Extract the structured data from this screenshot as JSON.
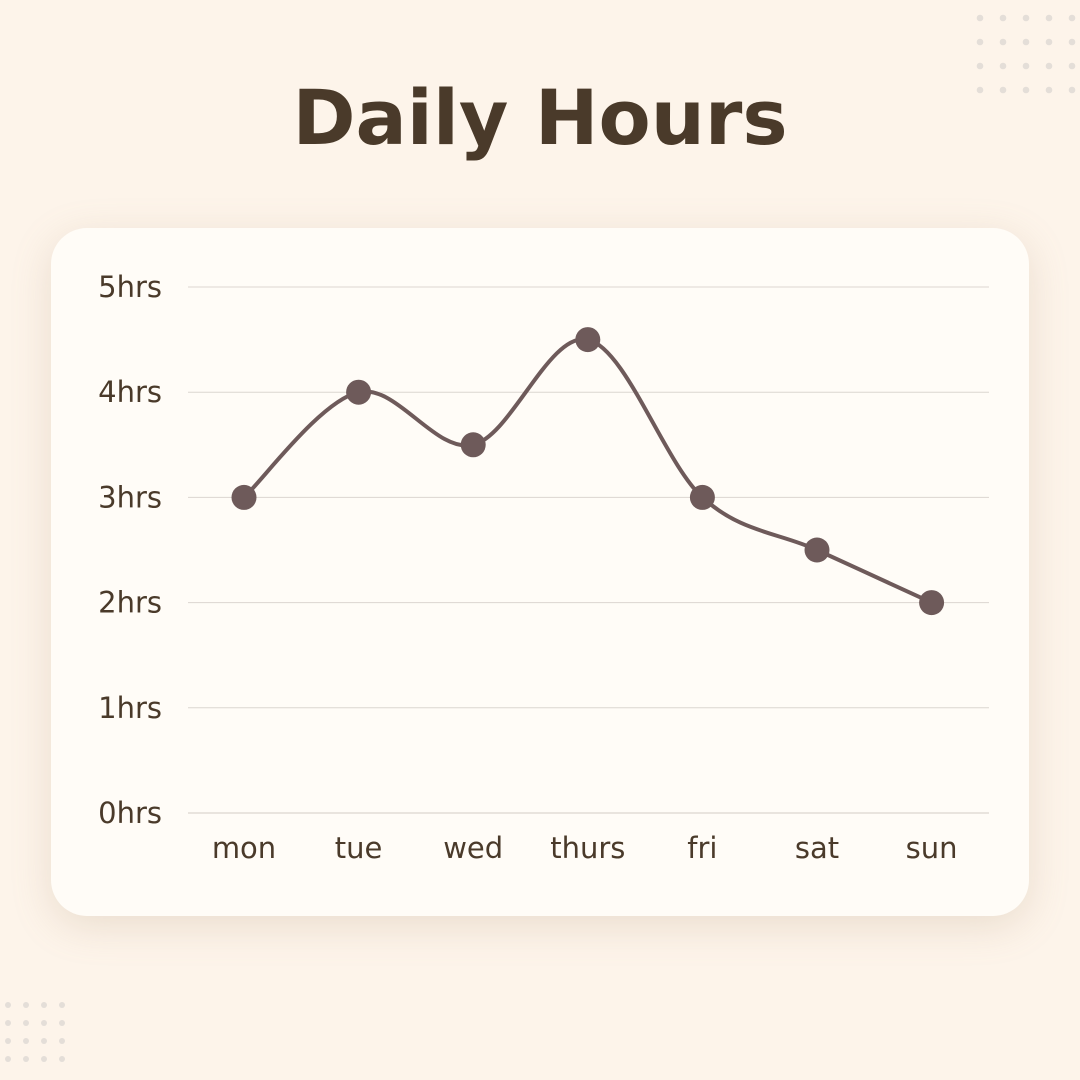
{
  "title": "Daily Hours",
  "chart_data": {
    "type": "line",
    "title": "Daily Hours",
    "xlabel": "",
    "ylabel": "",
    "categories": [
      "mon",
      "tue",
      "wed",
      "thurs",
      "fri",
      "sat",
      "sun"
    ],
    "series": [
      {
        "values": [
          3,
          4,
          3.5,
          4.5,
          3,
          2.5,
          2
        ]
      }
    ],
    "y_ticks": [
      "0hrs",
      "1hrs",
      "2hrs",
      "3hrs",
      "4hrs",
      "5hrs"
    ],
    "ylim": [
      0,
      5
    ],
    "grid": true,
    "smooth": true,
    "legend": "none"
  },
  "colors": {
    "background": "#fdf4ea",
    "card": "#fffcf7",
    "text": "#4a3a2a",
    "line": "#6e5a5a",
    "grid": "#dcd6d0",
    "dots": "#e4ded8"
  }
}
